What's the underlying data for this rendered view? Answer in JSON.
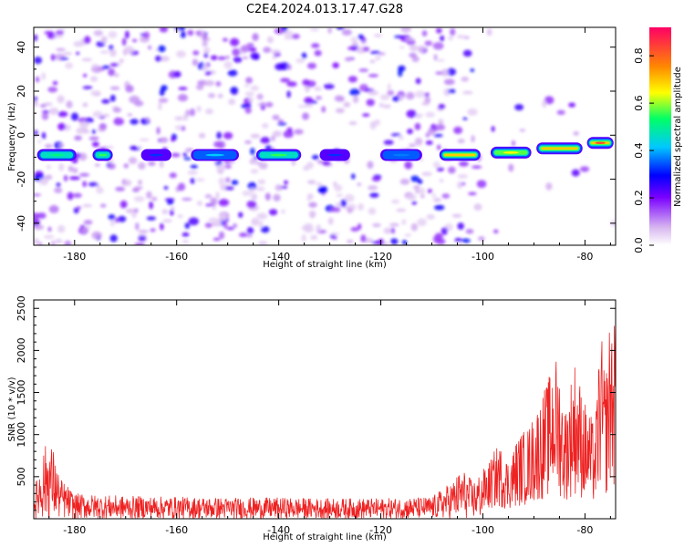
{
  "title": "C2E4.2024.013.17.47.G28",
  "chart_data": [
    {
      "type": "heatmap",
      "panel": "spectrogram",
      "title": "C2E4.2024.013.17.47.G28",
      "xlabel": "Height of straight line (km)",
      "ylabel": "Frequency (Hz)",
      "xlim": [
        -188,
        -74
      ],
      "ylim": [
        -50,
        49
      ],
      "xticks": [
        -180,
        -160,
        -140,
        -120,
        -100,
        -80
      ],
      "yticks": [
        -40,
        -20,
        0,
        20,
        40
      ],
      "grid": false,
      "colorbar": {
        "label": "Normalized spectral amplitude",
        "range": [
          0.0,
          0.92
        ],
        "ticks": [
          0.0,
          0.2,
          0.4,
          0.6,
          0.8
        ],
        "colors": [
          "#ffffff",
          "#d8b8f0",
          "#7a00ff",
          "#0000ff",
          "#00c8ff",
          "#00ff66",
          "#ffff00",
          "#ff8800",
          "#ff0066"
        ]
      },
      "ridge": {
        "frequency_hz": [
          [
            -188,
            -9
          ],
          [
            -150,
            -9
          ],
          [
            -120,
            -9
          ],
          [
            -105,
            -9
          ],
          [
            -100,
            -8.5
          ],
          [
            -95,
            -8
          ],
          [
            -90,
            -7
          ],
          [
            -85,
            -6
          ],
          [
            -80,
            -5
          ],
          [
            -76,
            -3
          ]
        ],
        "segments": [
          {
            "x0": -188,
            "x1": -179,
            "amp": 0.55
          },
          {
            "x0": -177,
            "x1": -172,
            "amp": 0.6
          },
          {
            "x0": -168,
            "x1": -160,
            "amp": 0.35
          },
          {
            "x0": -158,
            "x1": -147,
            "amp": 0.45
          },
          {
            "x0": -145,
            "x1": -135,
            "amp": 0.6
          },
          {
            "x0": -133,
            "x1": -125,
            "amp": 0.35
          },
          {
            "x0": -121,
            "x1": -111,
            "amp": 0.4
          },
          {
            "x0": -109,
            "x1": -100,
            "amp": 0.75
          },
          {
            "x0": -99,
            "x1": -90,
            "amp": 0.7
          },
          {
            "x0": -90,
            "x1": -80,
            "amp": 0.75
          },
          {
            "x0": -80,
            "x1": -74,
            "amp": 0.9
          }
        ]
      }
    },
    {
      "type": "line",
      "panel": "snr",
      "xlabel": "Height of straight line (km)",
      "ylabel": "SNR (10 * v/v)",
      "xlim": [
        -188,
        -74
      ],
      "ylim": [
        0,
        2600
      ],
      "xticks": [
        -180,
        -160,
        -140,
        -120,
        -100,
        -80
      ],
      "yticks": [
        500,
        1000,
        1500,
        2000,
        2500
      ],
      "grid": false,
      "series": [
        {
          "color": "#ee2222",
          "envelope": {
            "x": [
              -188,
              -187,
              -186,
              -185,
              -184,
              -183,
              -180,
              -175,
              -170,
              -160,
              -150,
              -140,
              -130,
              -120,
              -110,
              -106,
              -104,
              -102,
              -99,
              -97,
              -95,
              -93,
              -91,
              -89,
              -87,
              -86,
              -85,
              -84,
              -82,
              -80,
              -78,
              -77,
              -76,
              -75,
              -74
            ],
            "y": [
              300,
              600,
              850,
              950,
              800,
              500,
              300,
              280,
              270,
              260,
              250,
              250,
              240,
              240,
              260,
              450,
              600,
              450,
              650,
              900,
              700,
              1000,
              1100,
              1400,
              1700,
              2000,
              1800,
              1300,
              1900,
              1400,
              1100,
              2300,
              1700,
              2500,
              2300
            ]
          }
        }
      ]
    }
  ]
}
